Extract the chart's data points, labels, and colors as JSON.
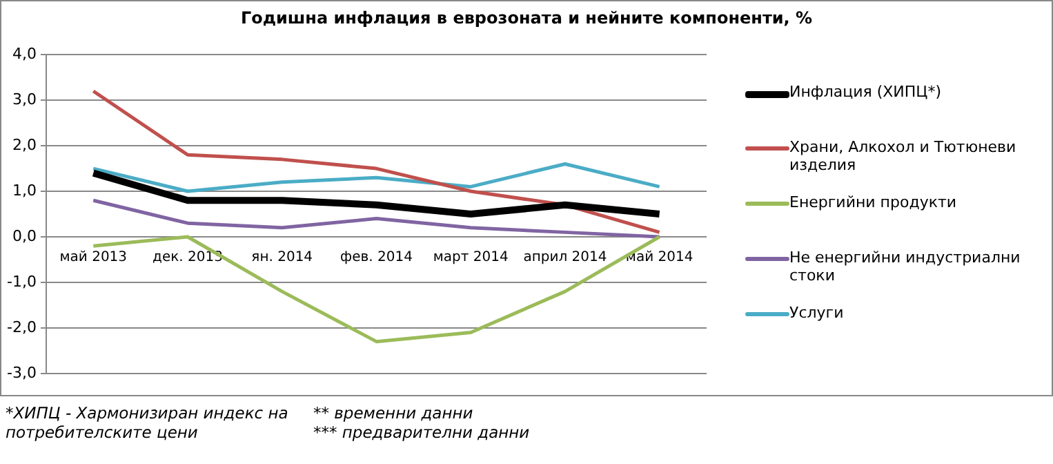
{
  "chart_data": {
    "type": "line",
    "title": "Годишна инфлация в еврозоната и нейните компоненти, %",
    "categories": [
      "май 2013",
      "дек. 2013",
      "ян. 2014",
      "фев. 2014",
      "март 2014",
      "април 2014",
      "май 2014"
    ],
    "series": [
      {
        "name": "Инфлация (ХИПЦ*)",
        "color": "#000000",
        "values": [
          1.4,
          0.8,
          0.8,
          0.7,
          0.5,
          0.7,
          0.5
        ]
      },
      {
        "name": "Храни, Алкохол и Тютюневи изделия",
        "color": "#c0504d",
        "values": [
          3.2,
          1.8,
          1.7,
          1.5,
          1.0,
          0.7,
          0.1
        ]
      },
      {
        "name": "Енергийни продукти",
        "color": "#9bbb59",
        "values": [
          -0.2,
          0.0,
          -1.2,
          -2.3,
          -2.1,
          -1.2,
          0.0
        ]
      },
      {
        "name": "Не енергийни индустриални стоки",
        "color": "#8064a2",
        "values": [
          0.8,
          0.3,
          0.2,
          0.4,
          0.2,
          0.1,
          0.0
        ]
      },
      {
        "name": "Услуги",
        "color": "#4bacc6",
        "values": [
          1.5,
          1.0,
          1.2,
          1.3,
          1.1,
          1.6,
          1.1
        ]
      }
    ],
    "ylim": [
      -3,
      4
    ],
    "yticks": [
      {
        "value": -3,
        "label": "-3,0"
      },
      {
        "value": -2,
        "label": "-2,0"
      },
      {
        "value": -1,
        "label": "-1,0"
      },
      {
        "value": 0,
        "label": "0,0"
      },
      {
        "value": 1,
        "label": "1,0"
      },
      {
        "value": 2,
        "label": "2,0"
      },
      {
        "value": 3,
        "label": "3,0"
      },
      {
        "value": 4,
        "label": "4,0"
      }
    ],
    "grid": "y",
    "legend": "right",
    "marker": "none",
    "line_style": "solid",
    "annotations": [
      "*ХИПЦ - Хармонизиран индекс на потребителските цени",
      "** временни данни",
      "*** предварителни данни"
    ]
  }
}
